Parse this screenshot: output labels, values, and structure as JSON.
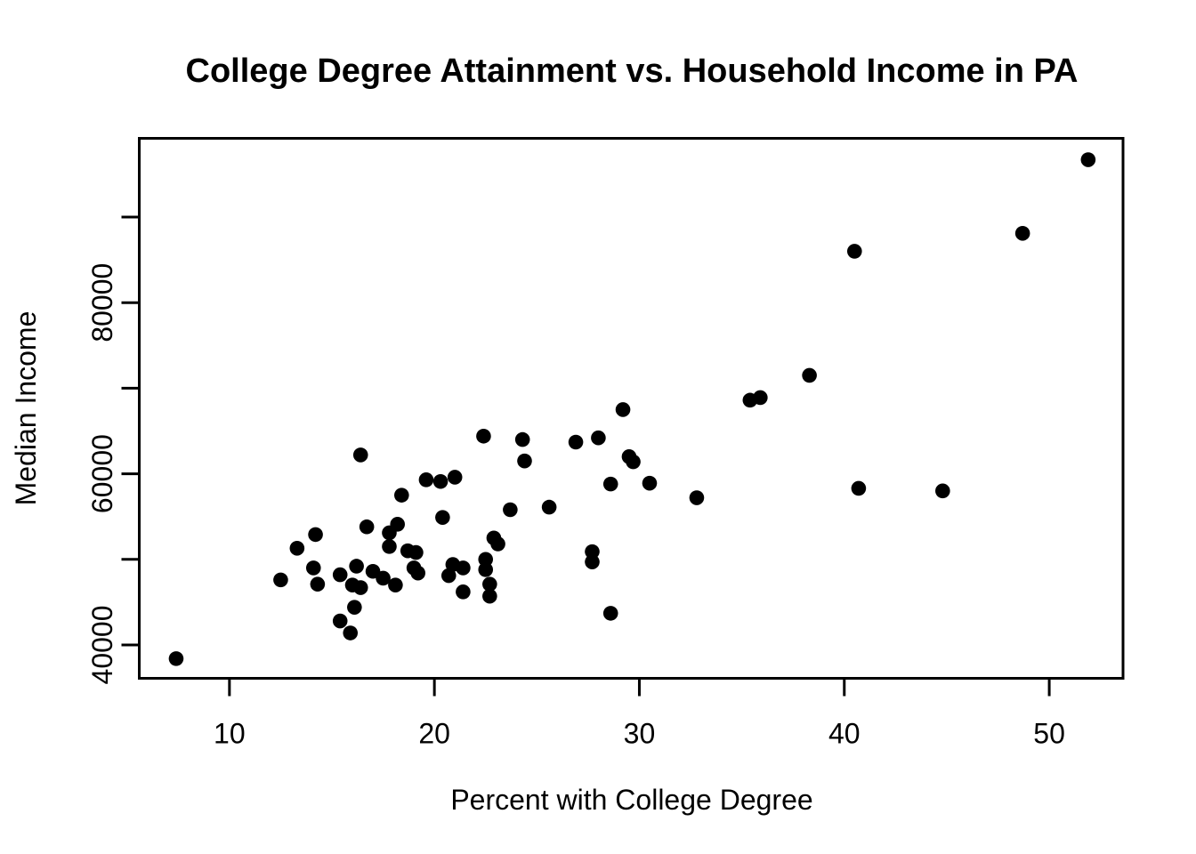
{
  "window": {
    "background_color": "#ffffff",
    "foreground_color": "#000000"
  },
  "chart_data": {
    "type": "scatter",
    "title": "College Degree Attainment vs. Household Income in PA",
    "xlabel": "Percent with College Degree",
    "ylabel": "Median Income",
    "xlim": [
      5.6,
      53.6
    ],
    "ylim": [
      36100,
      99200
    ],
    "x_ticks": [
      10,
      20,
      30,
      40,
      50
    ],
    "y_ticks": [
      40000,
      50000,
      60000,
      70000,
      80000,
      90000
    ],
    "y_tick_labels": [
      "40000",
      "",
      "60000",
      "",
      "80000",
      ""
    ],
    "grid": false,
    "legend": "none",
    "marker": "filled-circle",
    "marker_color": "#000000",
    "points": [
      [
        7.4,
        38400
      ],
      [
        12.5,
        47600
      ],
      [
        13.3,
        51300
      ],
      [
        14.1,
        49000
      ],
      [
        14.2,
        52900
      ],
      [
        14.3,
        47100
      ],
      [
        15.4,
        48200
      ],
      [
        15.4,
        42800
      ],
      [
        15.9,
        41400
      ],
      [
        16.0,
        47000
      ],
      [
        16.1,
        44400
      ],
      [
        16.2,
        49200
      ],
      [
        16.4,
        46700
      ],
      [
        16.4,
        62200
      ],
      [
        16.7,
        53800
      ],
      [
        17.0,
        48600
      ],
      [
        17.5,
        47800
      ],
      [
        17.8,
        53100
      ],
      [
        17.8,
        51500
      ],
      [
        18.1,
        47000
      ],
      [
        18.2,
        54100
      ],
      [
        18.4,
        57500
      ],
      [
        18.7,
        51000
      ],
      [
        19.0,
        49000
      ],
      [
        19.1,
        50800
      ],
      [
        19.2,
        48400
      ],
      [
        19.6,
        59300
      ],
      [
        20.3,
        59100
      ],
      [
        20.4,
        54900
      ],
      [
        20.7,
        48100
      ],
      [
        20.9,
        49400
      ],
      [
        21.0,
        59600
      ],
      [
        21.4,
        49000
      ],
      [
        21.4,
        46200
      ],
      [
        22.4,
        64400
      ],
      [
        22.5,
        50000
      ],
      [
        22.5,
        48800
      ],
      [
        22.7,
        47100
      ],
      [
        22.7,
        45700
      ],
      [
        22.9,
        52500
      ],
      [
        23.1,
        51800
      ],
      [
        23.7,
        55800
      ],
      [
        24.3,
        64000
      ],
      [
        24.4,
        61500
      ],
      [
        25.6,
        56100
      ],
      [
        26.9,
        63700
      ],
      [
        27.7,
        50900
      ],
      [
        27.7,
        49700
      ],
      [
        28.0,
        64200
      ],
      [
        28.6,
        58800
      ],
      [
        28.6,
        43700
      ],
      [
        29.2,
        67500
      ],
      [
        29.5,
        62000
      ],
      [
        29.7,
        61400
      ],
      [
        30.5,
        58900
      ],
      [
        32.8,
        57200
      ],
      [
        35.4,
        68600
      ],
      [
        35.9,
        68900
      ],
      [
        38.3,
        71500
      ],
      [
        40.5,
        86000
      ],
      [
        40.7,
        58300
      ],
      [
        44.8,
        58000
      ],
      [
        48.7,
        88100
      ],
      [
        51.9,
        96700
      ]
    ]
  }
}
